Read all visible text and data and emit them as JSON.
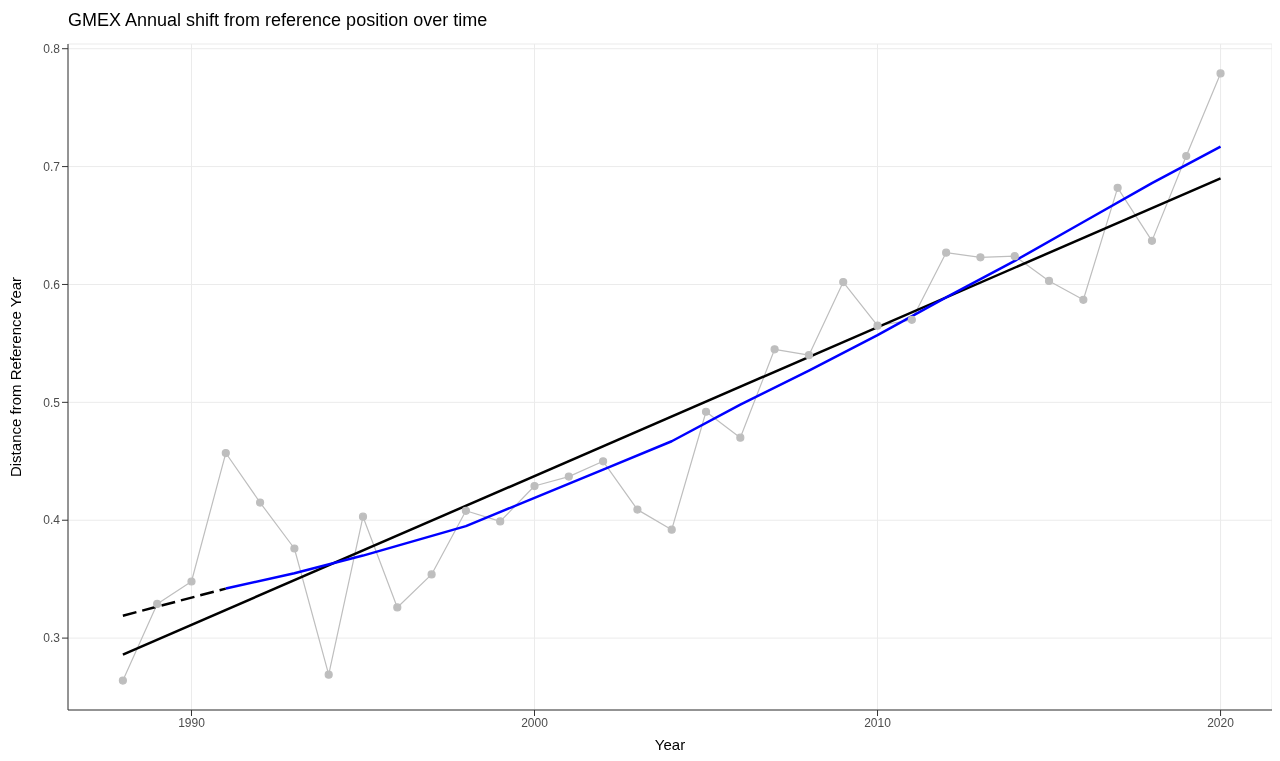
{
  "chart_data": {
    "type": "line",
    "title": "GMEX Annual shift from reference position over time",
    "xlabel": "Year",
    "ylabel": "Distance from Reference Year",
    "xlim": [
      1986.4,
      2021.5
    ],
    "ylim": [
      0.239,
      0.804
    ],
    "xticks": [
      1990,
      2000,
      2010,
      2020
    ],
    "yticks": [
      0.3,
      0.4,
      0.5,
      0.6,
      0.7,
      0.8
    ],
    "grid": true,
    "series": [
      {
        "color": "#bebebe",
        "marker": "circle",
        "line_style": "solid",
        "x": [
          1988,
          1989,
          1990,
          1991,
          1992,
          1993,
          1994,
          1995,
          1996,
          1997,
          1998,
          1999,
          2000,
          2001,
          2002,
          2003,
          2004,
          2005,
          2006,
          2007,
          2008,
          2009,
          2010,
          2011,
          2012,
          2013,
          2014,
          2015,
          2016,
          2017,
          2018,
          2019,
          2020
        ],
        "values": [
          0.264,
          0.329,
          0.348,
          0.457,
          0.415,
          0.376,
          0.269,
          0.403,
          0.326,
          0.354,
          0.408,
          0.399,
          0.429,
          0.437,
          0.45,
          0.409,
          0.392,
          0.492,
          0.47,
          0.545,
          0.54,
          0.602,
          0.565,
          0.57,
          0.627,
          0.623,
          0.624,
          0.603,
          0.587,
          0.682,
          0.637,
          0.709,
          0.779
        ]
      },
      {
        "color": "#000000",
        "marker": "none",
        "line_style": "solid",
        "x": [
          1988,
          2020
        ],
        "values": [
          0.286,
          0.69
        ]
      },
      {
        "color": "#000000",
        "marker": "none",
        "line_style": "dashed",
        "x": [
          1988,
          1991
        ],
        "values": [
          0.319,
          0.342
        ]
      },
      {
        "color": "#0000ff",
        "marker": "none",
        "line_style": "solid",
        "x": [
          1991,
          1993,
          1995,
          1998,
          2000,
          2002,
          2004,
          2006,
          2008,
          2010,
          2012,
          2014,
          2016,
          2018,
          2020
        ],
        "values": [
          0.342,
          0.355,
          0.37,
          0.395,
          0.419,
          0.443,
          0.467,
          0.498,
          0.527,
          0.557,
          0.589,
          0.62,
          0.653,
          0.686,
          0.717
        ]
      }
    ]
  }
}
